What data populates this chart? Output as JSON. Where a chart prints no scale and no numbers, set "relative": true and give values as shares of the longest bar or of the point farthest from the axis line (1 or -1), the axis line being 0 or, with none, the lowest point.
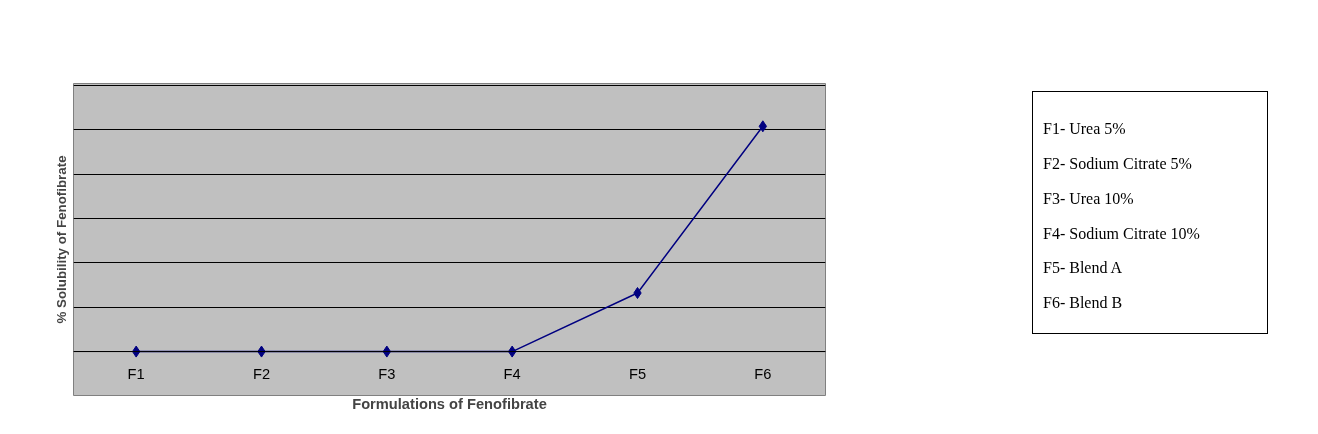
{
  "chart_data": {
    "type": "line",
    "relative": true,
    "categories": [
      "F1",
      "F2",
      "F3",
      "F4",
      "F5",
      "F6"
    ],
    "series": [
      {
        "color": "#000080",
        "values": [
          0,
          0,
          0,
          0,
          0.26,
          1
        ]
      }
    ],
    "xlabel": "Formulations of Fenofibrate",
    "ylabel": "% Solubility of Fenofibrate",
    "marker": "diamond",
    "line_style": "solid",
    "grid": "y",
    "annotations": [
      "F1- Urea 5%",
      "F2- Sodium Citrate 5%",
      "F3- Urea 10%",
      "F4- Sodium Citrate 10%",
      "F5- Blend A",
      "F6- Blend B"
    ]
  }
}
